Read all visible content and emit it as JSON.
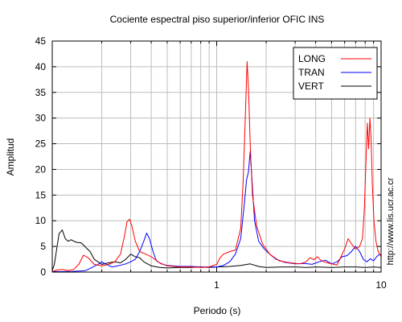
{
  "chart_data": {
    "type": "line",
    "title": "Cociente espectral piso superior/inferior  OFIC INS",
    "xlabel": "Periodo (s)",
    "ylabel": "Amplitud",
    "x_scale": "log",
    "xlim": [
      0.1,
      10
    ],
    "ylim": [
      0,
      45
    ],
    "x_ticks": [
      1,
      10
    ],
    "x_tick_labels": [
      "1",
      "10"
    ],
    "y_ticks": [
      0,
      5,
      10,
      15,
      20,
      25,
      30,
      35,
      40,
      45
    ],
    "y_tick_labels": [
      "0",
      "5",
      "10",
      "15",
      "20",
      "25",
      "30",
      "35",
      "40",
      "45"
    ],
    "grid": true,
    "legend_position": "top-right",
    "series": [
      {
        "name": "LONG",
        "color": "#ff0000",
        "points": [
          [
            0.1,
            0.1
          ],
          [
            0.107,
            0.4
          ],
          [
            0.115,
            0.5
          ],
          [
            0.125,
            0.3
          ],
          [
            0.135,
            0.5
          ],
          [
            0.145,
            1.5
          ],
          [
            0.155,
            3.3
          ],
          [
            0.165,
            2.8
          ],
          [
            0.18,
            1.5
          ],
          [
            0.2,
            1.2
          ],
          [
            0.22,
            1.5
          ],
          [
            0.24,
            2.0
          ],
          [
            0.26,
            3.5
          ],
          [
            0.275,
            7.0
          ],
          [
            0.285,
            9.8
          ],
          [
            0.295,
            10.3
          ],
          [
            0.305,
            9.0
          ],
          [
            0.32,
            6.0
          ],
          [
            0.34,
            4.0
          ],
          [
            0.37,
            3.5
          ],
          [
            0.4,
            3.0
          ],
          [
            0.45,
            1.8
          ],
          [
            0.5,
            1.2
          ],
          [
            0.6,
            1.0
          ],
          [
            0.7,
            1.0
          ],
          [
            0.8,
            0.9
          ],
          [
            0.9,
            1.0
          ],
          [
            1.0,
            1.5
          ],
          [
            1.05,
            2.8
          ],
          [
            1.1,
            3.5
          ],
          [
            1.2,
            4.0
          ],
          [
            1.3,
            4.3
          ],
          [
            1.4,
            8.5
          ],
          [
            1.45,
            18.0
          ],
          [
            1.5,
            32.0
          ],
          [
            1.53,
            41.0
          ],
          [
            1.56,
            36.0
          ],
          [
            1.6,
            25.0
          ],
          [
            1.65,
            15.0
          ],
          [
            1.75,
            9.0
          ],
          [
            1.9,
            5.5
          ],
          [
            2.1,
            3.5
          ],
          [
            2.4,
            2.2
          ],
          [
            2.8,
            1.8
          ],
          [
            3.2,
            1.6
          ],
          [
            3.5,
            2.0
          ],
          [
            3.7,
            2.8
          ],
          [
            3.9,
            2.4
          ],
          [
            4.1,
            3.0
          ],
          [
            4.3,
            2.3
          ],
          [
            4.6,
            1.9
          ],
          [
            5.0,
            1.6
          ],
          [
            5.4,
            1.4
          ],
          [
            5.7,
            3.0
          ],
          [
            6.0,
            4.5
          ],
          [
            6.3,
            6.5
          ],
          [
            6.6,
            5.5
          ],
          [
            7.0,
            4.5
          ],
          [
            7.4,
            5.0
          ],
          [
            7.7,
            6.5
          ],
          [
            7.9,
            12.0
          ],
          [
            8.1,
            22.0
          ],
          [
            8.25,
            29.0
          ],
          [
            8.4,
            24.0
          ],
          [
            8.55,
            30.0
          ],
          [
            8.7,
            26.0
          ],
          [
            8.85,
            17.0
          ],
          [
            9.05,
            10.0
          ],
          [
            9.3,
            6.0
          ],
          [
            9.6,
            4.0
          ],
          [
            10.0,
            3.0
          ]
        ]
      },
      {
        "name": "TRAN",
        "color": "#0000ff",
        "points": [
          [
            0.1,
            0.1
          ],
          [
            0.13,
            0.1
          ],
          [
            0.16,
            0.3
          ],
          [
            0.19,
            1.5
          ],
          [
            0.2,
            2.0
          ],
          [
            0.21,
            1.6
          ],
          [
            0.23,
            1.0
          ],
          [
            0.25,
            1.2
          ],
          [
            0.28,
            1.6
          ],
          [
            0.3,
            2.0
          ],
          [
            0.32,
            2.5
          ],
          [
            0.34,
            4.0
          ],
          [
            0.36,
            6.0
          ],
          [
            0.375,
            7.6
          ],
          [
            0.39,
            6.5
          ],
          [
            0.41,
            4.0
          ],
          [
            0.43,
            2.2
          ],
          [
            0.46,
            1.6
          ],
          [
            0.5,
            1.3
          ],
          [
            0.6,
            1.1
          ],
          [
            0.7,
            1.1
          ],
          [
            0.8,
            1.0
          ],
          [
            0.9,
            1.0
          ],
          [
            1.0,
            1.0
          ],
          [
            1.1,
            1.3
          ],
          [
            1.2,
            2.0
          ],
          [
            1.3,
            3.5
          ],
          [
            1.4,
            6.5
          ],
          [
            1.47,
            13.0
          ],
          [
            1.52,
            18.0
          ],
          [
            1.56,
            19.5
          ],
          [
            1.6,
            23.5
          ],
          [
            1.64,
            18.0
          ],
          [
            1.7,
            10.0
          ],
          [
            1.8,
            6.0
          ],
          [
            1.95,
            4.5
          ],
          [
            2.1,
            3.5
          ],
          [
            2.3,
            2.5
          ],
          [
            2.6,
            1.9
          ],
          [
            3.0,
            1.6
          ],
          [
            3.4,
            1.7
          ],
          [
            3.8,
            1.5
          ],
          [
            4.2,
            2.0
          ],
          [
            4.6,
            2.3
          ],
          [
            5.0,
            1.6
          ],
          [
            5.4,
            2.0
          ],
          [
            5.8,
            3.0
          ],
          [
            6.2,
            3.2
          ],
          [
            6.6,
            4.0
          ],
          [
            7.0,
            5.0
          ],
          [
            7.4,
            4.0
          ],
          [
            7.8,
            2.5
          ],
          [
            8.2,
            2.0
          ],
          [
            8.6,
            2.6
          ],
          [
            9.0,
            2.2
          ],
          [
            9.4,
            3.0
          ],
          [
            9.8,
            3.5
          ],
          [
            10.0,
            3.2
          ]
        ]
      },
      {
        "name": "VERT",
        "color": "#000000",
        "points": [
          [
            0.1,
            0.3
          ],
          [
            0.103,
            1.5
          ],
          [
            0.107,
            5.0
          ],
          [
            0.11,
            7.5
          ],
          [
            0.115,
            8.2
          ],
          [
            0.12,
            6.5
          ],
          [
            0.125,
            6.0
          ],
          [
            0.13,
            6.3
          ],
          [
            0.14,
            5.8
          ],
          [
            0.15,
            5.7
          ],
          [
            0.16,
            4.8
          ],
          [
            0.17,
            4.0
          ],
          [
            0.18,
            2.5
          ],
          [
            0.2,
            1.5
          ],
          [
            0.22,
            1.8
          ],
          [
            0.24,
            2.0
          ],
          [
            0.26,
            1.8
          ],
          [
            0.28,
            2.5
          ],
          [
            0.3,
            3.5
          ],
          [
            0.32,
            3.0
          ],
          [
            0.34,
            2.8
          ],
          [
            0.36,
            2.0
          ],
          [
            0.4,
            1.2
          ],
          [
            0.45,
            0.9
          ],
          [
            0.5,
            0.8
          ],
          [
            0.6,
            0.9
          ],
          [
            0.7,
            0.9
          ],
          [
            0.8,
            1.0
          ],
          [
            0.9,
            0.9
          ],
          [
            1.0,
            1.0
          ],
          [
            1.2,
            1.1
          ],
          [
            1.4,
            1.3
          ],
          [
            1.6,
            1.6
          ],
          [
            1.8,
            1.1
          ],
          [
            2.0,
            0.9
          ],
          [
            2.5,
            1.0
          ],
          [
            3.0,
            1.0
          ],
          [
            3.5,
            0.9
          ],
          [
            4.0,
            1.0
          ],
          [
            5.0,
            0.9
          ],
          [
            6.0,
            1.0
          ],
          [
            7.0,
            1.0
          ],
          [
            8.0,
            0.9
          ],
          [
            9.0,
            1.0
          ],
          [
            10.0,
            0.9
          ]
        ]
      }
    ]
  },
  "side_note": "http://www.lis.ucr.ac.cr"
}
